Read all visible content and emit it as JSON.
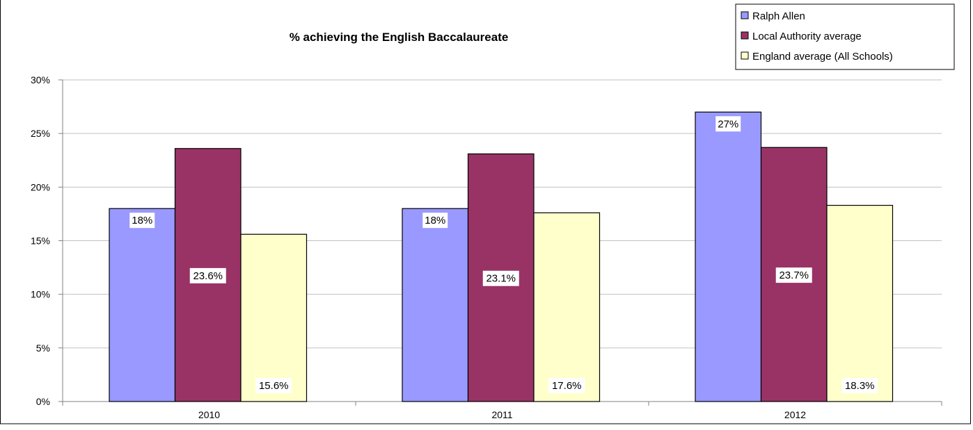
{
  "chart_data": {
    "type": "bar",
    "title": "% achieving the English Baccalaureate",
    "categories": [
      "2010",
      "2011",
      "2012"
    ],
    "series": [
      {
        "name": "Ralph Allen",
        "values": [
          18,
          18,
          27
        ],
        "labels": [
          "18%",
          "18%",
          "27%"
        ],
        "color": "#9999ff"
      },
      {
        "name": "Local Authority average",
        "values": [
          23.6,
          23.1,
          23.7
        ],
        "labels": [
          "23.6%",
          "23.1%",
          "23.7%"
        ],
        "color": "#993366"
      },
      {
        "name": "England average (All Schools)",
        "values": [
          15.6,
          17.6,
          18.3
        ],
        "labels": [
          "15.6%",
          "17.6%",
          "18.3%"
        ],
        "color": "#ffffcc"
      }
    ],
    "y_ticks": [
      "0%",
      "5%",
      "10%",
      "15%",
      "20%",
      "25%",
      "30%"
    ],
    "ylim": [
      0,
      30
    ],
    "y_unit": "%",
    "grid": true,
    "legend_position": "top-right"
  }
}
